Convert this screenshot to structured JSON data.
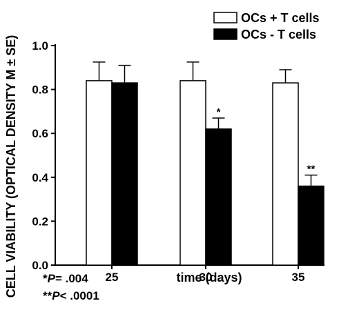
{
  "chart_data": {
    "type": "bar",
    "title": "",
    "xlabel": "time (days)",
    "ylabel": "CELL VIABILITY (OPTICAL DENSITY M ± SE)",
    "categories": [
      "25",
      "30",
      "35"
    ],
    "ylim": [
      0,
      1.0
    ],
    "yticks": [
      "0.0",
      "0.2",
      "0.4",
      "0.6",
      "0.8",
      "1.0"
    ],
    "legend_position": "top-right",
    "series": [
      {
        "name": "OCs + T cells",
        "fill": "#ffffff",
        "values": [
          0.84,
          0.84,
          0.83
        ],
        "errors": [
          0.085,
          0.085,
          0.06
        ]
      },
      {
        "name": "OCs - T cells",
        "fill": "#000000",
        "values": [
          0.83,
          0.62,
          0.36
        ],
        "errors": [
          0.08,
          0.05,
          0.05
        ]
      }
    ],
    "annotations": [
      {
        "series": 1,
        "category": 1,
        "text": "*"
      },
      {
        "series": 1,
        "category": 2,
        "text": "**"
      }
    ],
    "footnotes": [
      {
        "prefix": "*",
        "italic": "P",
        "rest": "= .004"
      },
      {
        "prefix": "**",
        "italic": "P",
        "rest": "< .0001"
      }
    ]
  }
}
